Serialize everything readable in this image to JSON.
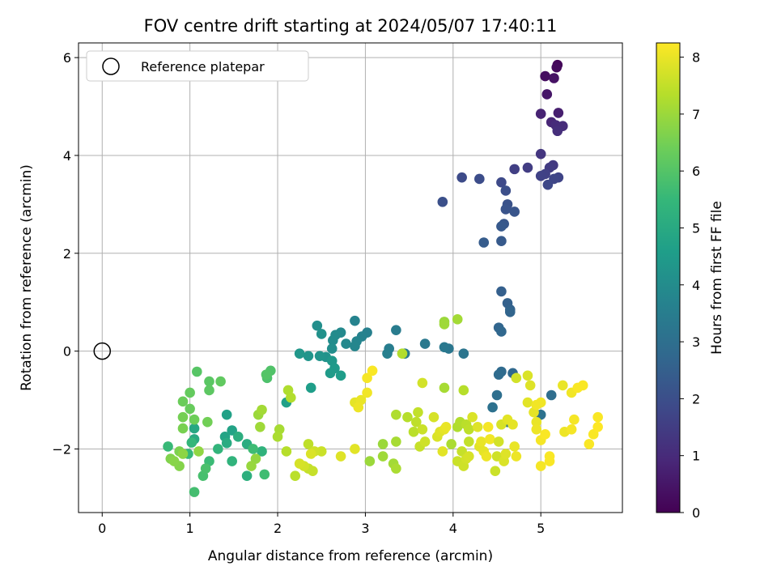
{
  "chart_data": {
    "type": "scatter",
    "title": "FOV centre drift starting at 2024/05/07 17:40:11",
    "xlabel": "Angular distance from reference (arcmin)",
    "ylabel": "Rotation from reference (arcmin)",
    "colorbar_label": "Hours from first FF file",
    "xlim": [
      -0.27,
      5.93
    ],
    "ylim": [
      -3.3,
      6.3
    ],
    "xticks": [
      0,
      1,
      2,
      3,
      4,
      5
    ],
    "yticks": [
      -2,
      0,
      2,
      4,
      6
    ],
    "cticks": [
      0,
      1,
      2,
      3,
      4,
      5,
      6,
      7,
      8
    ],
    "clim": [
      0,
      8.25
    ],
    "colormap": "viridis",
    "grid": true,
    "legend": {
      "label": "Reference platepar",
      "placement": "top-left"
    },
    "reference_point": {
      "x": 0,
      "y": 0
    },
    "points": [
      [
        5.19,
        5.85,
        0.1
      ],
      [
        5.18,
        5.8,
        0.2
      ],
      [
        5.05,
        5.62,
        0.3
      ],
      [
        5.15,
        5.58,
        0.4
      ],
      [
        5.07,
        5.25,
        0.5
      ],
      [
        5.2,
        4.87,
        0.7
      ],
      [
        5.0,
        4.85,
        0.8
      ],
      [
        5.12,
        4.68,
        0.9
      ],
      [
        5.17,
        4.62,
        1.0
      ],
      [
        5.25,
        4.6,
        1.05
      ],
      [
        5.19,
        4.5,
        1.1
      ],
      [
        5.0,
        4.03,
        1.3
      ],
      [
        5.14,
        3.8,
        1.4
      ],
      [
        5.1,
        3.75,
        1.45
      ],
      [
        4.85,
        3.75,
        1.5
      ],
      [
        4.7,
        3.72,
        1.55
      ],
      [
        5.05,
        3.62,
        1.6
      ],
      [
        5.0,
        3.58,
        1.65
      ],
      [
        5.2,
        3.55,
        1.7
      ],
      [
        5.15,
        3.52,
        1.75
      ],
      [
        5.08,
        3.4,
        1.8
      ],
      [
        4.55,
        3.45,
        1.85
      ],
      [
        4.1,
        3.55,
        1.9
      ],
      [
        4.3,
        3.52,
        1.95
      ],
      [
        4.6,
        3.28,
        2.0
      ],
      [
        3.88,
        3.05,
        2.05
      ],
      [
        4.62,
        3.0,
        2.1
      ],
      [
        4.6,
        2.9,
        2.15
      ],
      [
        4.7,
        2.85,
        2.2
      ],
      [
        4.58,
        2.6,
        2.25
      ],
      [
        4.55,
        2.55,
        2.3
      ],
      [
        4.55,
        2.25,
        2.35
      ],
      [
        4.35,
        2.22,
        2.4
      ],
      [
        4.55,
        1.22,
        2.5
      ],
      [
        4.62,
        0.98,
        2.55
      ],
      [
        4.65,
        0.85,
        2.6
      ],
      [
        4.65,
        0.8,
        2.65
      ],
      [
        4.52,
        0.48,
        2.7
      ],
      [
        4.55,
        0.4,
        2.75
      ],
      [
        4.68,
        -0.45,
        2.8
      ],
      [
        4.55,
        -0.42,
        2.85
      ],
      [
        4.52,
        -0.48,
        2.9
      ],
      [
        5.12,
        -0.9,
        2.95
      ],
      [
        4.5,
        -0.9,
        3.0
      ],
      [
        4.45,
        -1.15,
        3.05
      ],
      [
        5.0,
        -1.3,
        3.1
      ],
      [
        4.62,
        -1.45,
        3.15
      ],
      [
        4.12,
        -0.05,
        3.2
      ],
      [
        3.95,
        0.05,
        3.25
      ],
      [
        3.9,
        0.08,
        3.3
      ],
      [
        3.68,
        0.15,
        3.35
      ],
      [
        3.45,
        -0.05,
        3.4
      ],
      [
        3.35,
        0.43,
        3.45
      ],
      [
        3.27,
        0.05,
        3.5
      ],
      [
        3.25,
        -0.05,
        3.55
      ],
      [
        3.02,
        0.38,
        3.6
      ],
      [
        2.96,
        0.3,
        3.65
      ],
      [
        2.88,
        0.62,
        3.7
      ],
      [
        2.9,
        0.2,
        3.75
      ],
      [
        2.88,
        0.1,
        3.8
      ],
      [
        2.78,
        0.15,
        3.85
      ],
      [
        2.72,
        0.38,
        3.9
      ],
      [
        2.66,
        0.33,
        3.95
      ],
      [
        2.63,
        0.22,
        4.0
      ],
      [
        2.62,
        0.05,
        4.05
      ],
      [
        2.45,
        0.52,
        4.1
      ],
      [
        2.5,
        0.35,
        4.15
      ],
      [
        2.55,
        -0.12,
        4.2
      ],
      [
        2.48,
        -0.1,
        4.25
      ],
      [
        2.35,
        -0.1,
        4.3
      ],
      [
        2.25,
        -0.05,
        4.35
      ],
      [
        2.62,
        -0.2,
        4.4
      ],
      [
        2.65,
        -0.35,
        4.45
      ],
      [
        2.6,
        -0.45,
        4.5
      ],
      [
        2.72,
        -0.5,
        4.55
      ],
      [
        2.38,
        -0.75,
        4.6
      ],
      [
        2.1,
        -1.05,
        4.65
      ],
      [
        1.42,
        -1.3,
        4.7
      ],
      [
        1.48,
        -1.62,
        4.75
      ],
      [
        1.4,
        -1.75,
        4.8
      ],
      [
        1.05,
        -1.58,
        4.9
      ],
      [
        1.05,
        -1.8,
        5.0
      ],
      [
        1.42,
        -1.88,
        5.05
      ],
      [
        1.65,
        -1.9,
        5.1
      ],
      [
        1.55,
        -1.75,
        5.15
      ],
      [
        1.65,
        -2.55,
        5.2
      ],
      [
        1.82,
        -2.05,
        5.3
      ],
      [
        1.48,
        -2.25,
        5.35
      ],
      [
        1.32,
        -2.0,
        5.4
      ],
      [
        1.02,
        -1.87,
        5.45
      ],
      [
        0.98,
        -2.1,
        5.5
      ],
      [
        0.75,
        -1.95,
        5.55
      ],
      [
        1.22,
        -2.25,
        5.6
      ],
      [
        1.72,
        -2.0,
        5.65
      ],
      [
        1.85,
        -2.52,
        5.7
      ],
      [
        1.05,
        -2.88,
        5.75
      ],
      [
        1.15,
        -2.55,
        5.8
      ],
      [
        1.18,
        -2.4,
        5.85
      ],
      [
        1.88,
        -0.55,
        5.9
      ],
      [
        1.92,
        -0.4,
        5.95
      ],
      [
        1.87,
        -0.48,
        6.0
      ],
      [
        1.08,
        -0.42,
        6.05
      ],
      [
        1.22,
        -0.62,
        6.1
      ],
      [
        1.22,
        -0.8,
        6.15
      ],
      [
        1.35,
        -0.62,
        6.2
      ],
      [
        1.0,
        -0.85,
        6.25
      ],
      [
        1.0,
        -1.18,
        6.3
      ],
      [
        0.92,
        -1.03,
        6.35
      ],
      [
        1.05,
        -1.4,
        6.4
      ],
      [
        1.2,
        -1.45,
        6.45
      ],
      [
        0.92,
        -1.35,
        6.5
      ],
      [
        0.92,
        -1.58,
        6.55
      ],
      [
        0.88,
        -2.05,
        6.6
      ],
      [
        0.78,
        -2.2,
        6.65
      ],
      [
        0.88,
        -2.35,
        6.7
      ],
      [
        0.82,
        -2.25,
        6.75
      ],
      [
        0.92,
        -2.1,
        6.8
      ],
      [
        1.1,
        -2.05,
        6.85
      ],
      [
        1.75,
        -2.2,
        6.9
      ],
      [
        1.7,
        -2.35,
        6.95
      ],
      [
        1.78,
        -1.3,
        7.0
      ],
      [
        1.8,
        -1.55,
        7.05
      ],
      [
        1.82,
        -1.2,
        7.1
      ],
      [
        2.02,
        -1.6,
        7.15
      ],
      [
        2.0,
        -1.75,
        7.2
      ],
      [
        2.12,
        -0.8,
        7.25
      ],
      [
        2.15,
        -0.95,
        7.3
      ],
      [
        2.1,
        -2.05,
        7.35
      ],
      [
        2.2,
        -2.55,
        7.4
      ],
      [
        2.35,
        -1.9,
        7.45
      ],
      [
        2.35,
        -2.4,
        7.5
      ],
      [
        2.4,
        -2.45,
        7.55
      ],
      [
        2.5,
        -2.05,
        7.6
      ],
      [
        2.42,
        -2.05,
        7.65
      ],
      [
        2.3,
        -2.35,
        7.7
      ],
      [
        2.25,
        -2.3,
        7.75
      ],
      [
        2.38,
        -2.1,
        7.8
      ],
      [
        2.72,
        -2.15,
        7.85
      ],
      [
        2.88,
        -2.0,
        7.9
      ],
      [
        2.88,
        -1.05,
        7.95
      ],
      [
        2.95,
        -1.0,
        8.0
      ],
      [
        2.92,
        -1.15,
        8.05
      ],
      [
        3.02,
        -0.85,
        8.1
      ],
      [
        3.02,
        -0.55,
        8.15
      ],
      [
        3.08,
        -0.4,
        8.2
      ],
      [
        3.05,
        -2.25,
        7.0
      ],
      [
        3.2,
        -1.9,
        7.0
      ],
      [
        3.2,
        -2.15,
        7.05
      ],
      [
        3.32,
        -2.3,
        7.1
      ],
      [
        3.35,
        -1.85,
        7.15
      ],
      [
        3.35,
        -2.4,
        7.2
      ],
      [
        3.35,
        -1.3,
        7.25
      ],
      [
        3.42,
        -0.05,
        7.3
      ],
      [
        3.48,
        -1.35,
        7.35
      ],
      [
        3.55,
        -1.65,
        7.4
      ],
      [
        3.58,
        -1.45,
        7.45
      ],
      [
        3.6,
        -1.25,
        7.5
      ],
      [
        3.62,
        -1.95,
        7.55
      ],
      [
        3.65,
        -1.6,
        7.6
      ],
      [
        3.68,
        -1.85,
        7.65
      ],
      [
        3.65,
        -0.65,
        7.7
      ],
      [
        3.78,
        -1.35,
        7.75
      ],
      [
        3.82,
        -1.75,
        7.8
      ],
      [
        3.85,
        -1.65,
        7.85
      ],
      [
        3.88,
        -2.05,
        7.9
      ],
      [
        3.9,
        -1.6,
        7.95
      ],
      [
        3.92,
        -1.55,
        8.0
      ],
      [
        3.9,
        0.6,
        7.0
      ],
      [
        3.9,
        0.55,
        7.05
      ],
      [
        4.05,
        0.65,
        7.1
      ],
      [
        3.9,
        -0.75,
        7.15
      ],
      [
        3.98,
        -1.9,
        7.2
      ],
      [
        4.05,
        -1.55,
        7.25
      ],
      [
        4.08,
        -1.45,
        7.3
      ],
      [
        4.12,
        -0.8,
        7.35
      ],
      [
        4.15,
        -1.5,
        7.4
      ],
      [
        4.18,
        -1.6,
        7.45
      ],
      [
        4.18,
        -1.85,
        7.5
      ],
      [
        4.1,
        -2.05,
        7.55
      ],
      [
        4.05,
        -2.25,
        7.6
      ],
      [
        4.12,
        -2.35,
        7.65
      ],
      [
        4.15,
        -2.2,
        7.7
      ],
      [
        4.18,
        -2.15,
        7.75
      ],
      [
        4.22,
        -1.35,
        7.8
      ],
      [
        4.28,
        -1.55,
        7.85
      ],
      [
        4.3,
        -1.95,
        7.9
      ],
      [
        4.35,
        -2.05,
        7.95
      ],
      [
        4.32,
        -1.85,
        8.0
      ],
      [
        4.38,
        -2.15,
        8.05
      ],
      [
        4.42,
        -1.8,
        8.1
      ],
      [
        4.4,
        -1.55,
        8.15
      ],
      [
        4.48,
        -2.45,
        7.6
      ],
      [
        4.5,
        -2.15,
        7.65
      ],
      [
        4.52,
        -1.85,
        7.7
      ],
      [
        4.55,
        -1.5,
        7.75
      ],
      [
        4.58,
        -2.25,
        7.8
      ],
      [
        4.6,
        -2.1,
        7.85
      ],
      [
        4.62,
        -1.4,
        7.9
      ],
      [
        4.68,
        -1.5,
        7.95
      ],
      [
        4.7,
        -1.95,
        8.0
      ],
      [
        4.72,
        -2.15,
        8.05
      ],
      [
        4.72,
        -0.55,
        7.7
      ],
      [
        4.85,
        -0.5,
        7.8
      ],
      [
        4.88,
        -0.7,
        7.85
      ],
      [
        4.85,
        -1.05,
        7.9
      ],
      [
        4.92,
        -1.25,
        7.95
      ],
      [
        4.95,
        -1.45,
        8.0
      ],
      [
        4.95,
        -1.6,
        8.05
      ],
      [
        4.95,
        -1.1,
        8.1
      ],
      [
        5.0,
        -1.05,
        8.1
      ],
      [
        5.0,
        -1.82,
        8.15
      ],
      [
        5.0,
        -2.35,
        8.15
      ],
      [
        5.05,
        -1.7,
        8.2
      ],
      [
        5.1,
        -2.25,
        8.2
      ],
      [
        5.1,
        -2.15,
        8.2
      ],
      [
        5.25,
        -0.7,
        8.0
      ],
      [
        5.27,
        -1.65,
        8.05
      ],
      [
        5.35,
        -0.85,
        8.1
      ],
      [
        5.35,
        -1.6,
        8.15
      ],
      [
        5.38,
        -1.4,
        8.15
      ],
      [
        5.42,
        -0.75,
        8.2
      ],
      [
        5.48,
        -0.7,
        8.2
      ],
      [
        5.55,
        -1.9,
        8.2
      ],
      [
        5.6,
        -1.7,
        8.2
      ],
      [
        5.65,
        -1.35,
        8.2
      ],
      [
        5.65,
        -1.55,
        8.25
      ]
    ]
  }
}
